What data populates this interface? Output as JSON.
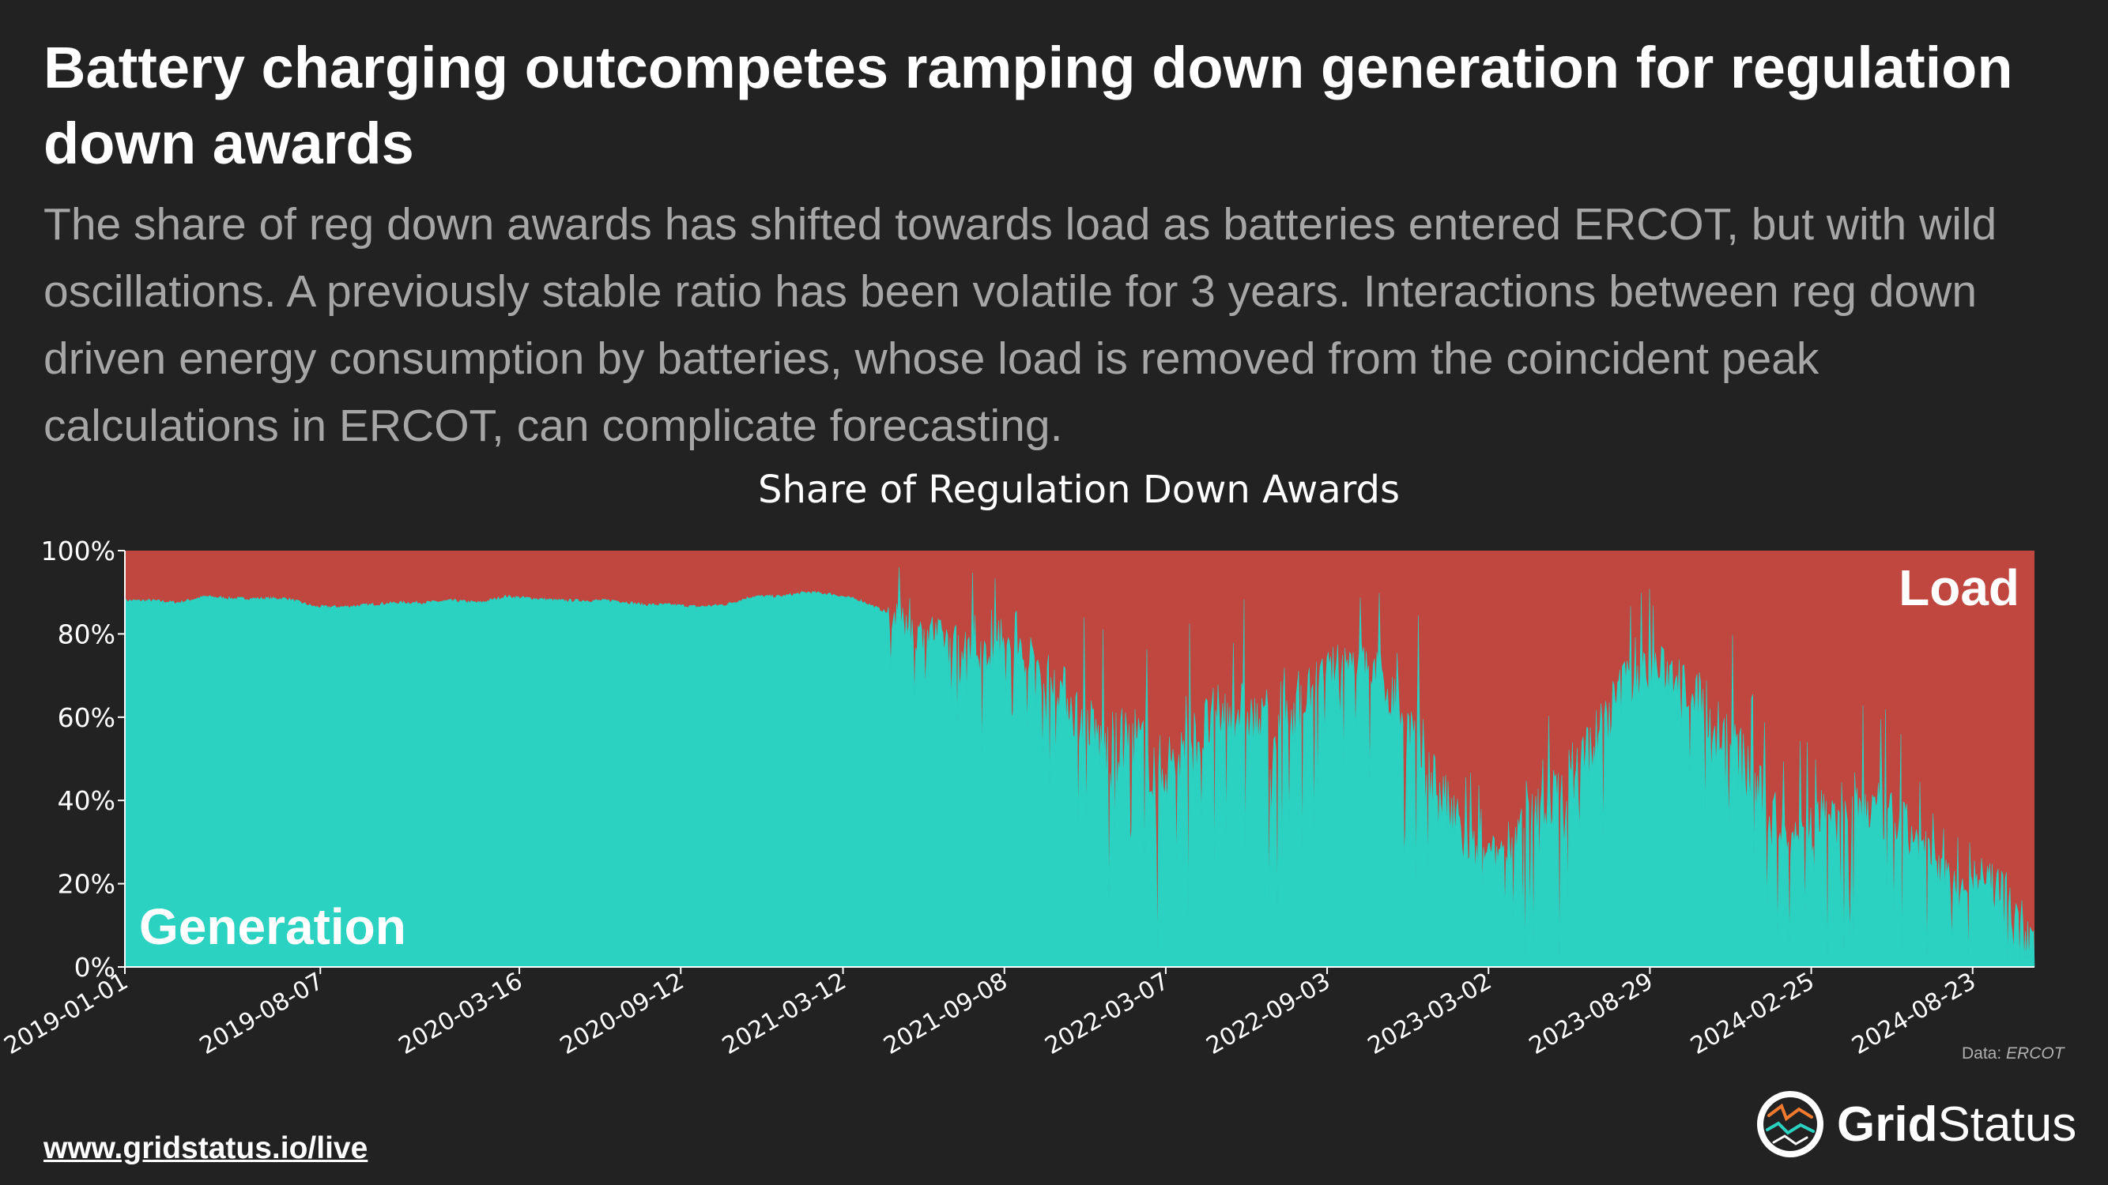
{
  "header": {
    "title": "Battery charging outcompetes ramping down generation for regulation down awards",
    "subtitle": "The share of reg down awards has shifted towards load as batteries entered ERCOT, but with wild oscillations. A previously stable ratio has been volatile for 3 years. Interactions between reg down driven energy consumption by batteries, whose load is removed from the coincident peak calculations in ERCOT, can complicate forecasting."
  },
  "footer": {
    "url": "www.gridstatus.io/live",
    "data_label": "Data: ",
    "data_source": "ERCOT",
    "brand_bold": "Grid",
    "brand_regular": "Status"
  },
  "colors": {
    "background": "#222222",
    "generation": "#2BD1C1",
    "load": "#C0473F",
    "text": "#ffffff",
    "subtitle": "#a6a6a6"
  },
  "chart_data": {
    "type": "area",
    "stacked": true,
    "percent": true,
    "title": "Share of Regulation Down Awards",
    "xlabel": "",
    "ylabel": "",
    "ylim": [
      0,
      100
    ],
    "y_ticks": [
      "0%",
      "20%",
      "40%",
      "60%",
      "80%",
      "100%"
    ],
    "x_ticks": [
      "2019-01-01",
      "2019-08-07",
      "2020-03-16",
      "2020-09-12",
      "2021-03-12",
      "2021-09-08",
      "2022-03-07",
      "2022-09-03",
      "2023-03-02",
      "2023-08-29",
      "2024-02-25",
      "2024-08-23"
    ],
    "x_range": [
      "2019-01-01",
      "2024-10-31"
    ],
    "grid": false,
    "legend": "inline labels",
    "series": [
      {
        "name": "Generation",
        "label_position": "bottom-left",
        "color": "#2BD1C1",
        "points": [
          [
            "2019-01-01",
            88
          ],
          [
            "2019-02-01",
            88
          ],
          [
            "2019-03-01",
            87.5
          ],
          [
            "2019-04-01",
            89
          ],
          [
            "2019-05-01",
            88.5
          ],
          [
            "2019-06-01",
            88.5
          ],
          [
            "2019-07-01",
            88.5
          ],
          [
            "2019-08-01",
            86.5
          ],
          [
            "2019-09-01",
            86.5
          ],
          [
            "2019-10-01",
            87
          ],
          [
            "2019-11-01",
            87.5
          ],
          [
            "2019-12-01",
            87.5
          ],
          [
            "2020-01-01",
            88
          ],
          [
            "2020-02-01",
            87.5
          ],
          [
            "2020-03-01",
            89
          ],
          [
            "2020-04-01",
            88.5
          ],
          [
            "2020-05-01",
            88
          ],
          [
            "2020-06-01",
            88
          ],
          [
            "2020-07-01",
            88
          ],
          [
            "2020-08-01",
            87
          ],
          [
            "2020-09-01",
            87
          ],
          [
            "2020-10-01",
            86.5
          ],
          [
            "2020-11-01",
            87
          ],
          [
            "2020-12-01",
            89
          ],
          [
            "2021-01-01",
            89
          ],
          [
            "2021-02-01",
            90
          ],
          [
            "2021-03-01",
            89.5
          ],
          [
            "2021-04-01",
            88
          ],
          [
            "2021-05-01",
            85
          ],
          [
            "2021-06-01",
            80
          ],
          [
            "2021-07-01",
            79
          ],
          [
            "2021-08-01",
            77
          ],
          [
            "2021-09-01",
            76
          ],
          [
            "2021-10-01",
            75
          ],
          [
            "2021-11-01",
            70
          ],
          [
            "2021-12-01",
            60
          ],
          [
            "2022-01-01",
            52
          ],
          [
            "2022-02-01",
            55
          ],
          [
            "2022-03-01",
            47
          ],
          [
            "2022-04-01",
            52
          ],
          [
            "2022-05-01",
            60
          ],
          [
            "2022-06-01",
            62
          ],
          [
            "2022-07-01",
            55
          ],
          [
            "2022-08-01",
            62
          ],
          [
            "2022-09-01",
            70
          ],
          [
            "2022-10-01",
            74
          ],
          [
            "2022-11-01",
            70
          ],
          [
            "2022-12-01",
            58
          ],
          [
            "2023-01-01",
            45
          ],
          [
            "2023-02-01",
            30
          ],
          [
            "2023-03-01",
            25
          ],
          [
            "2023-04-01",
            32
          ],
          [
            "2023-05-01",
            38
          ],
          [
            "2023-06-01",
            45
          ],
          [
            "2023-07-01",
            55
          ],
          [
            "2023-08-01",
            68
          ],
          [
            "2023-09-01",
            72
          ],
          [
            "2023-10-01",
            70
          ],
          [
            "2023-11-01",
            62
          ],
          [
            "2023-12-01",
            52
          ],
          [
            "2024-01-01",
            40
          ],
          [
            "2024-02-01",
            32
          ],
          [
            "2024-03-01",
            35
          ],
          [
            "2024-04-01",
            40
          ],
          [
            "2024-05-01",
            38
          ],
          [
            "2024-06-01",
            35
          ],
          [
            "2024-07-01",
            28
          ],
          [
            "2024-08-01",
            20
          ],
          [
            "2024-09-01",
            22
          ],
          [
            "2024-10-01",
            18
          ],
          [
            "2024-10-31",
            7
          ]
        ]
      },
      {
        "name": "Load",
        "label_position": "top-right",
        "color": "#C0473F",
        "note": "complement of Generation (100% stack)"
      }
    ]
  }
}
